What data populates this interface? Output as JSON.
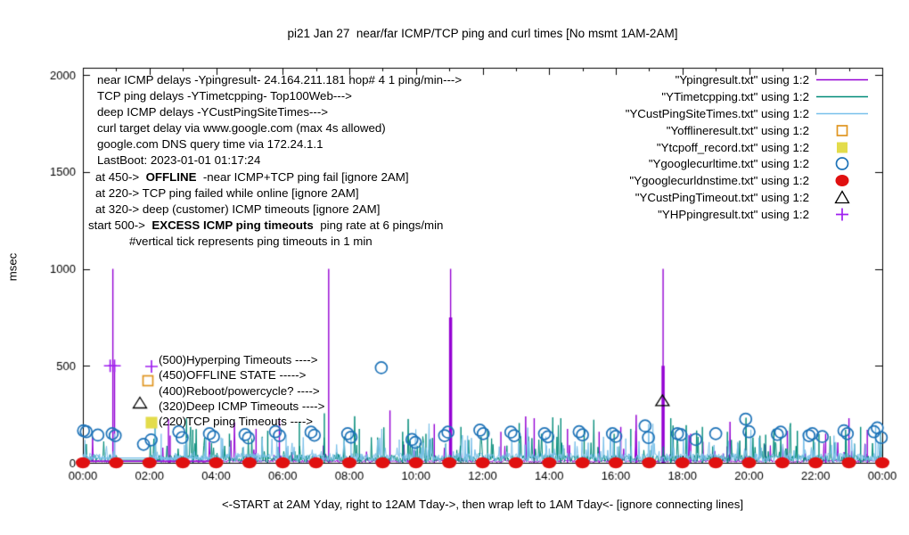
{
  "title": "pi21 Jan 27  near/far ICMP/TCP ping and curl times [No msmt 1AM-2AM]",
  "ylabel": "msec",
  "xlabel": "<-START at 2AM Yday, right to 12AM Tday->, then wrap left to 1AM Tday<- [ignore connecting lines]",
  "notes": {
    "lines": [
      {
        "pre": "near ICMP delays -Ypingresult- 24.164.211.181 hop# 4 1 ping/min--->",
        "bold": "",
        "post": ""
      },
      {
        "pre": "TCP ping delays -YTimetcpping- Top100Web--->",
        "bold": "",
        "post": ""
      },
      {
        "pre": "deep ICMP delays -YCustPingSiteTimes--->",
        "bold": "",
        "post": ""
      },
      {
        "pre": "curl target delay via www.google.com (max 4s allowed)",
        "bold": "",
        "post": ""
      },
      {
        "pre": "google.com DNS query time via 172.24.1.1",
        "bold": "",
        "post": ""
      },
      {
        "pre": "LastBoot: 2023-01-01 01:17:24",
        "bold": "",
        "post": ""
      },
      {
        "pre": "at 450->  ",
        "bold": "OFFLINE",
        "post": "  -near ICMP+TCP ping fail [ignore 2AM]"
      },
      {
        "pre": "at 220-> TCP ping failed while online [ignore 2AM]",
        "bold": "",
        "post": ""
      },
      {
        "pre": "at 320-> deep (customer) ICMP timeouts [ignore 2AM]",
        "bold": "",
        "post": ""
      },
      {
        "pre": "start 500->  ",
        "bold": "EXCESS ICMP ping timeouts",
        "post": "  ping rate at 6 pings/min"
      },
      {
        "pre": "#vertical tick represents ping timeouts in 1 min",
        "bold": "",
        "post": ""
      }
    ]
  },
  "annotations": {
    "lines": [
      "(500)Hyperping Timeouts ---->",
      "(450)OFFLINE STATE ----->",
      "(400)Reboot/powercycle? ---->",
      "(320)Deep ICMP Timeouts ---->",
      "(220)TCP ping Timeouts ---->"
    ]
  },
  "legend": {
    "items": [
      {
        "label": "\"Ypingresult.txt\" using 1:2",
        "type": "line",
        "color": "#9400D3"
      },
      {
        "label": "\"YTimetcpping.txt\" using 1:2",
        "type": "line",
        "color": "#008B78"
      },
      {
        "label": "\"YCustPingSiteTimes.txt\" using 1:2",
        "type": "line",
        "color": "#79C0EA"
      },
      {
        "label": "\"Yofflineresult.txt\" using 1:2",
        "type": "open-square",
        "color": "#E09520"
      },
      {
        "label": "\"Ytcpoff_record.txt\" using 1:2",
        "type": "filled-square",
        "color": "#E3DC4B"
      },
      {
        "label": "\"Ygooglecurltime.txt\" using 1:2",
        "type": "open-circle",
        "color": "#1E73B8"
      },
      {
        "label": "\"Ygooglecurldnstime.txt\" using 1:2",
        "type": "filled-circle",
        "color": "#E01010"
      },
      {
        "label": "\"YCustPingTimeout.txt\" using 1:2",
        "type": "open-triangle",
        "color": "#000000"
      },
      {
        "label": "\"YHPpingresult.txt\" using 1:2",
        "type": "plus",
        "color": "#A020F0"
      }
    ]
  },
  "chart_data": {
    "type": "line",
    "title": "pi21 Jan 27  near/far ICMP/TCP ping and curl times [No msmt 1AM-2AM]",
    "xlabel_ticks": [
      "00:00",
      "02:00",
      "04:00",
      "06:00",
      "08:00",
      "10:00",
      "12:00",
      "14:00",
      "16:00",
      "18:00",
      "20:00",
      "22:00",
      "00:00"
    ],
    "y_ticks": [
      0,
      500,
      1000,
      1500,
      2000
    ],
    "ylim": [
      0,
      2000
    ],
    "x_range_hours": [
      0,
      24
    ],
    "grid": false,
    "legend_position": "top-right-inside",
    "no_measurement_gap_hours": [
      1.05,
      2.02
    ],
    "seed": 20230127,
    "series": [
      {
        "name": "Ypingresult.txt",
        "color": "#9400D3",
        "render": "noise",
        "gap_value": 8,
        "base": [
          2,
          14
        ],
        "p_mid": 0.04,
        "mid": [
          25,
          110
        ],
        "p_big": 0.007,
        "big": [
          110,
          270
        ],
        "spikes": [
          [
            0.9,
            1000
          ],
          [
            0.95,
            500
          ],
          [
            2.57,
            225
          ],
          [
            2.62,
            140
          ],
          [
            5.2,
            175
          ],
          [
            5.9,
            220
          ],
          [
            7.38,
            1000
          ],
          [
            9.22,
            270
          ],
          [
            10.55,
            200
          ],
          [
            11.04,
            1000,
            750
          ],
          [
            12.55,
            160
          ],
          [
            13.55,
            230
          ],
          [
            14.55,
            175
          ],
          [
            15.5,
            160
          ],
          [
            16.15,
            185
          ],
          [
            16.6,
            165
          ],
          [
            17.42,
            1000,
            500
          ],
          [
            18.25,
            150
          ],
          [
            19.9,
            160
          ],
          [
            21.15,
            165
          ],
          [
            22.3,
            150
          ],
          [
            23.0,
            230
          ],
          [
            23.55,
            170
          ]
        ]
      },
      {
        "name": "YTimetcpping.txt",
        "color": "#008B78",
        "render": "noise",
        "gap_value": 14,
        "base": [
          4,
          40
        ],
        "p_mid": 0.1,
        "mid": [
          45,
          140
        ],
        "p_big": 0.015,
        "big": [
          140,
          240
        ],
        "spikes": [
          [
            3.3,
            170
          ],
          [
            4.4,
            150
          ],
          [
            5.55,
            165
          ],
          [
            6.5,
            210
          ],
          [
            7.25,
            255
          ],
          [
            8.3,
            175
          ],
          [
            9.6,
            160
          ],
          [
            10.3,
            150
          ],
          [
            11.35,
            185
          ],
          [
            12.15,
            175
          ],
          [
            13.1,
            205
          ],
          [
            14.35,
            230
          ],
          [
            15.05,
            175
          ],
          [
            15.95,
            150
          ],
          [
            16.45,
            175
          ],
          [
            17.65,
            230
          ],
          [
            18.6,
            185
          ],
          [
            19.35,
            160
          ],
          [
            20.5,
            145
          ],
          [
            21.45,
            165
          ],
          [
            22.1,
            150
          ],
          [
            22.9,
            170
          ],
          [
            23.35,
            185
          ]
        ]
      },
      {
        "name": "YCustPingSiteTimes.txt",
        "color": "#79C0EA",
        "render": "noise",
        "gap_value": 25,
        "base": [
          4,
          50
        ],
        "p_mid": 0.09,
        "mid": [
          55,
          130
        ],
        "p_big": 0.012,
        "big": [
          130,
          210
        ],
        "spikes": [
          [
            0.95,
            150
          ],
          [
            2.35,
            150
          ],
          [
            4.15,
            130
          ],
          [
            6.1,
            145
          ],
          [
            8.05,
            160
          ],
          [
            9.5,
            120
          ],
          [
            11.55,
            140
          ],
          [
            13.9,
            135
          ],
          [
            16.3,
            125
          ],
          [
            18.15,
            150
          ],
          [
            20.3,
            130
          ],
          [
            22.55,
            140
          ],
          [
            23.8,
            195
          ],
          [
            23.95,
            150
          ]
        ]
      },
      {
        "name": "Yofflineresult.txt",
        "color": "#E09520",
        "render": "points",
        "marker": "open-square",
        "points": []
      },
      {
        "name": "Ytcpoff_record.txt",
        "color": "#E3DC4B",
        "render": "points",
        "marker": "filled-square",
        "points": []
      },
      {
        "name": "Ygooglecurltime.txt",
        "color": "#1E73B8",
        "render": "points",
        "marker": "open-circle",
        "points": [
          [
            0.02,
            165
          ],
          [
            0.1,
            160
          ],
          [
            0.45,
            143
          ],
          [
            0.88,
            150
          ],
          [
            0.97,
            140
          ],
          [
            1.82,
            95
          ],
          [
            2.05,
            118
          ],
          [
            2.88,
            160
          ],
          [
            2.98,
            130
          ],
          [
            3.8,
            150
          ],
          [
            3.92,
            135
          ],
          [
            4.87,
            145
          ],
          [
            4.97,
            128
          ],
          [
            5.78,
            160
          ],
          [
            5.9,
            140
          ],
          [
            6.85,
            158
          ],
          [
            6.95,
            142
          ],
          [
            7.95,
            150
          ],
          [
            8.05,
            132
          ],
          [
            8.96,
            490
          ],
          [
            9.88,
            120
          ],
          [
            9.98,
            105
          ],
          [
            10.86,
            140
          ],
          [
            10.96,
            158
          ],
          [
            11.92,
            168
          ],
          [
            12.02,
            150
          ],
          [
            12.85,
            158
          ],
          [
            12.95,
            140
          ],
          [
            13.86,
            150
          ],
          [
            13.96,
            134
          ],
          [
            14.9,
            160
          ],
          [
            15.0,
            144
          ],
          [
            15.9,
            150
          ],
          [
            16.0,
            136
          ],
          [
            16.88,
            190
          ],
          [
            16.98,
            130
          ],
          [
            17.85,
            150
          ],
          [
            17.95,
            145
          ],
          [
            18.4,
            120
          ],
          [
            19.0,
            150
          ],
          [
            19.9,
            225
          ],
          [
            20.0,
            160
          ],
          [
            20.85,
            146
          ],
          [
            20.95,
            158
          ],
          [
            21.8,
            140
          ],
          [
            21.9,
            150
          ],
          [
            22.2,
            135
          ],
          [
            22.85,
            165
          ],
          [
            22.95,
            150
          ],
          [
            23.75,
            160
          ],
          [
            23.85,
            180
          ],
          [
            23.97,
            130
          ]
        ]
      },
      {
        "name": "Ygooglecurldnstime.txt",
        "color": "#E01010",
        "render": "points",
        "marker": "filled-circle",
        "points": [
          [
            0,
            0
          ],
          [
            1,
            0
          ],
          [
            2,
            0
          ],
          [
            3,
            0
          ],
          [
            4,
            0
          ],
          [
            5,
            0
          ],
          [
            6,
            0
          ],
          [
            7,
            0
          ],
          [
            8,
            0
          ],
          [
            9,
            0
          ],
          [
            10,
            0
          ],
          [
            11,
            0
          ],
          [
            12,
            0
          ],
          [
            13,
            0
          ],
          [
            14,
            0
          ],
          [
            15,
            0
          ],
          [
            16,
            0
          ],
          [
            17,
            0
          ],
          [
            18,
            0
          ],
          [
            19,
            0
          ],
          [
            20,
            0
          ],
          [
            21,
            0
          ],
          [
            22,
            0
          ],
          [
            23,
            0
          ],
          [
            24,
            0
          ]
        ]
      },
      {
        "name": "YCustPingTimeout.txt",
        "color": "#000000",
        "render": "points",
        "marker": "open-triangle",
        "points": [
          [
            17.4,
            320
          ]
        ]
      },
      {
        "name": "YHPpingresult.txt",
        "color": "#A020F0",
        "render": "points",
        "marker": "plus",
        "points": [
          [
            0.82,
            500
          ],
          [
            0.95,
            500
          ]
        ]
      }
    ],
    "connecting_flatlines": [
      {
        "color": "#79C0EA",
        "t": [
          0,
          4.15
        ],
        "v": 25
      },
      {
        "color": "#9400D3",
        "t": [
          0,
          3.95
        ],
        "v": 8
      }
    ],
    "annotation_markers": [
      {
        "marker": "plus",
        "color": "#A020F0",
        "x": 170,
        "y": 411
      },
      {
        "marker": "open-square",
        "color": "#E09520",
        "x": 166,
        "y": 427
      },
      {
        "marker": "open-triangle",
        "color": "#000000",
        "x": 157,
        "y": 452
      },
      {
        "marker": "filled-square",
        "color": "#E3DC4B",
        "x": 170,
        "y": 474
      }
    ]
  }
}
